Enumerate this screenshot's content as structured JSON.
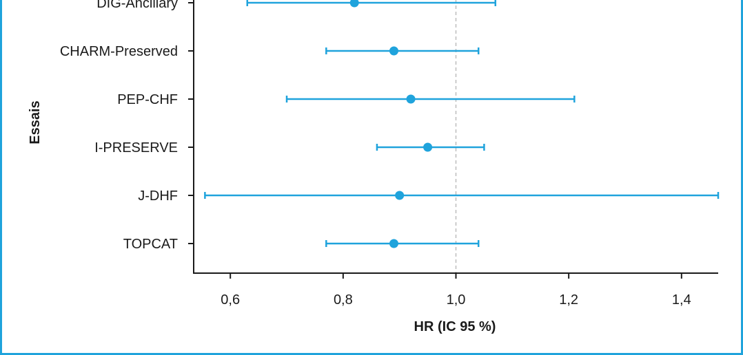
{
  "chart_data": {
    "type": "forest",
    "xlabel": "HR (IC 95 %)",
    "ylabel": "Essais",
    "xlim": [
      0.535,
      1.465
    ],
    "xticks": [
      {
        "value": 0.6,
        "label": "0,6"
      },
      {
        "value": 0.8,
        "label": "0,8"
      },
      {
        "value": 1.0,
        "label": "1,0"
      },
      {
        "value": 1.2,
        "label": "1,2"
      },
      {
        "value": 1.4,
        "label": "1,4"
      }
    ],
    "reference_line": 1.0,
    "studies": [
      {
        "name": "DIG-Ancillary",
        "hr": 0.82,
        "lower": 0.63,
        "upper": 1.07
      },
      {
        "name": "CHARM-Preserved",
        "hr": 0.89,
        "lower": 0.77,
        "upper": 1.04
      },
      {
        "name": "PEP-CHF",
        "hr": 0.92,
        "lower": 0.7,
        "upper": 1.21
      },
      {
        "name": "I-PRESERVE",
        "hr": 0.95,
        "lower": 0.86,
        "upper": 1.05
      },
      {
        "name": "J-DHF",
        "hr": 0.9,
        "lower": 0.555,
        "upper": 1.465
      },
      {
        "name": "TOPCAT",
        "hr": 0.89,
        "lower": 0.77,
        "upper": 1.04
      }
    ],
    "colors": {
      "series": "#1fa3dc",
      "axis": "#1a1a1a",
      "reference": "#bdbdbd",
      "frame": "#1fa3dc"
    }
  }
}
